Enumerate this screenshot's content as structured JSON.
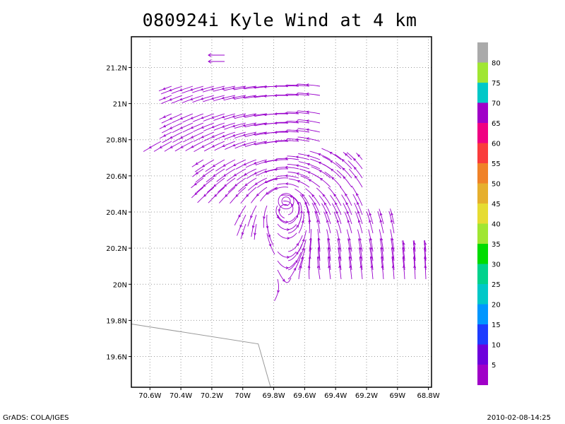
{
  "chart_data": {
    "type": "streamline",
    "title": "080924i Kyle Wind at 4 km",
    "xlabel": "",
    "ylabel": "",
    "xlim": [
      -70.72,
      -68.78
    ],
    "ylim": [
      19.43,
      21.37
    ],
    "x_ticks": [
      {
        "value": -70.6,
        "label": "70.6W"
      },
      {
        "value": -70.4,
        "label": "70.4W"
      },
      {
        "value": -70.2,
        "label": "70.2W"
      },
      {
        "value": -70.0,
        "label": "70W"
      },
      {
        "value": -69.8,
        "label": "69.8W"
      },
      {
        "value": -69.6,
        "label": "69.6W"
      },
      {
        "value": -69.4,
        "label": "69.4W"
      },
      {
        "value": -69.2,
        "label": "69.2W"
      },
      {
        "value": -69.0,
        "label": "69W"
      },
      {
        "value": -68.8,
        "label": "68.8W"
      }
    ],
    "y_ticks": [
      {
        "value": 19.6,
        "label": "19.6N"
      },
      {
        "value": 19.8,
        "label": "19.8N"
      },
      {
        "value": 20.0,
        "label": "20N"
      },
      {
        "value": 20.2,
        "label": "20.2N"
      },
      {
        "value": 20.4,
        "label": "20.4N"
      },
      {
        "value": 20.6,
        "label": "20.6N"
      },
      {
        "value": 20.8,
        "label": "20.8N"
      },
      {
        "value": 21.0,
        "label": "21N"
      },
      {
        "value": 21.2,
        "label": "21.2N"
      }
    ],
    "grid": true,
    "vortex_center": {
      "lon": -69.72,
      "lat": 20.46
    },
    "streamline_color": "#9900cc",
    "coastline_color": "#999999",
    "coastline": [
      [
        -70.72,
        19.78
      ],
      [
        -69.9,
        19.67
      ],
      [
        -69.82,
        19.43
      ]
    ],
    "colorbar": {
      "labels": [
        "5",
        "10",
        "15",
        "20",
        "25",
        "30",
        "35",
        "40",
        "45",
        "50",
        "55",
        "60",
        "65",
        "70",
        "75",
        "80"
      ],
      "colors": [
        "#a000c8",
        "#6e00dc",
        "#1e3cff",
        "#0096ff",
        "#00c8c8",
        "#00d28c",
        "#00dc00",
        "#a0e632",
        "#e6dc32",
        "#e6af2d",
        "#f08228",
        "#fa3c3c",
        "#f00082",
        "#a000c8",
        "#00c8c8",
        "#a0e632",
        "#aaaaaa"
      ]
    }
  },
  "footer": {
    "left": "GrADS: COLA/IGES",
    "right": "2010-02-08-14:25"
  }
}
